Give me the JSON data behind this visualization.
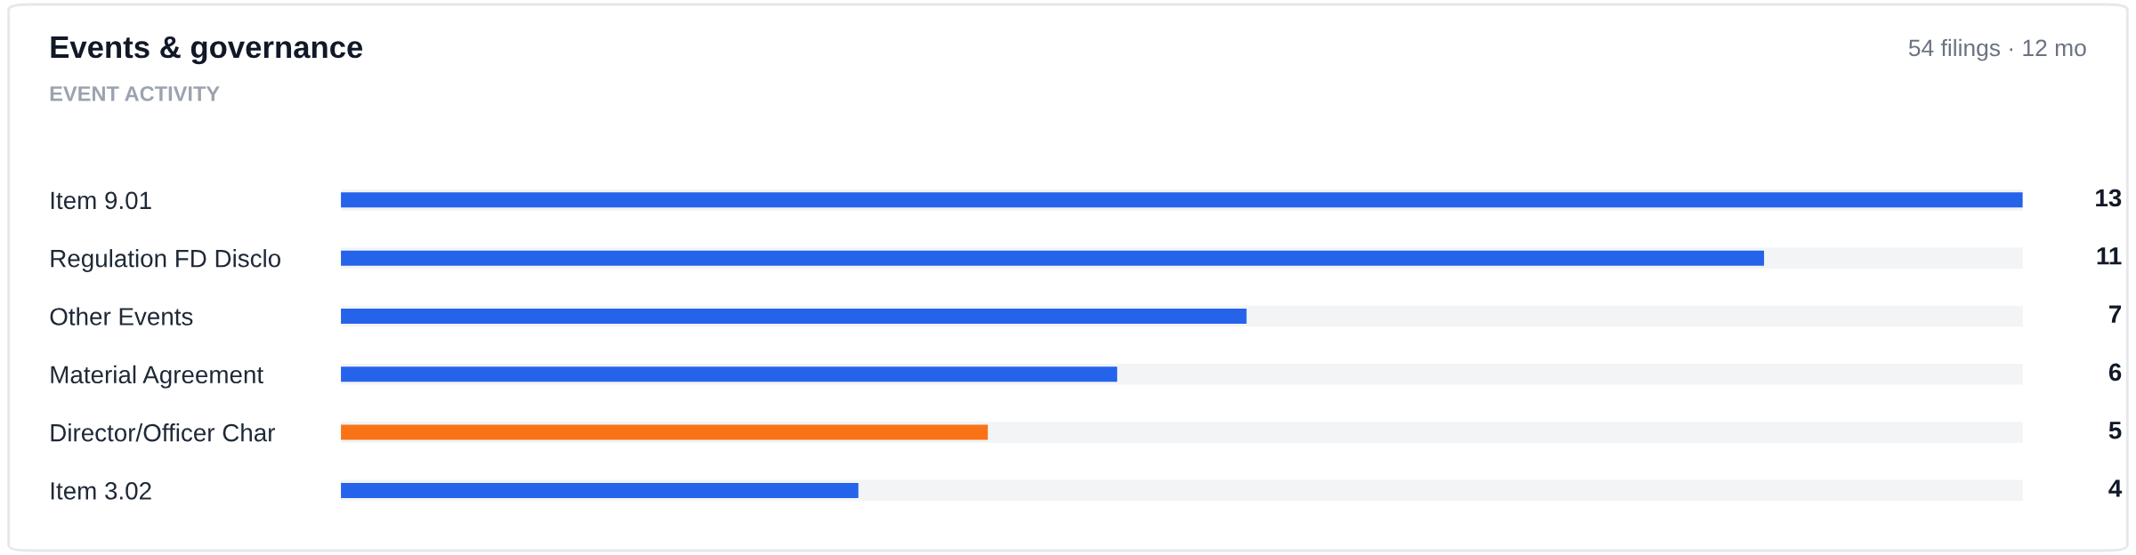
{
  "chart_data": {
    "type": "bar",
    "orientation": "horizontal",
    "title": "Events & governance",
    "subtitle": "54 filings · 12 mo",
    "annotations": [
      "EVENT ACTIVITY"
    ],
    "categories": [
      "Item 9.01",
      "Regulation FD Disclo",
      "Other Events",
      "Material Agreement",
      "Director/Officer Char",
      "Item 3.02"
    ],
    "values": [
      13,
      11,
      7,
      6,
      5,
      4
    ],
    "colors": [
      "#2563eb",
      "#2563eb",
      "#2563eb",
      "#2563eb",
      "#f97316",
      "#2563eb"
    ],
    "data_labels": true,
    "grid": false,
    "legend": false
  }
}
